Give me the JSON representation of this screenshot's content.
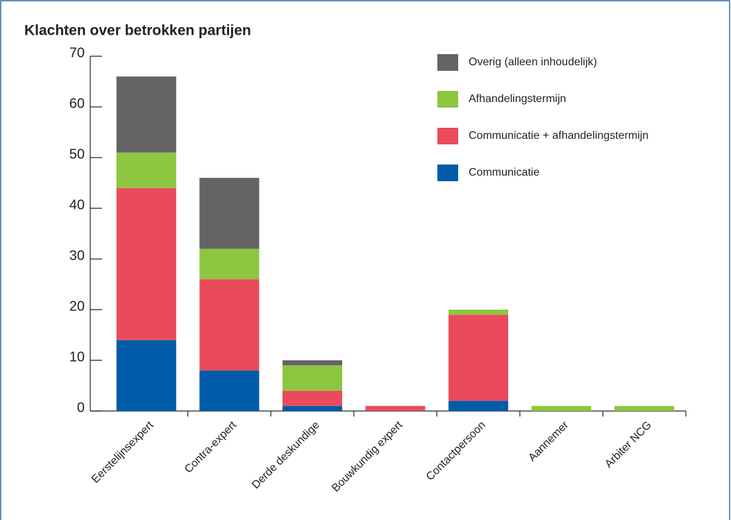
{
  "chart_data": {
    "type": "stacked_bar",
    "title": "Klachten over betrokken partijen",
    "categories": [
      "Eerstelijnsexpert",
      "Contra-expert",
      "Derde deskundige",
      "Bouwkundig expert",
      "Contactpersoon",
      "Aannemer",
      "Arbiter NCG"
    ],
    "series": [
      {
        "name": "Communicatie",
        "color": "#005ca8",
        "values": [
          14,
          8,
          1,
          0,
          2,
          0,
          0
        ]
      },
      {
        "name": "Communicatie + afhandelingstermijn",
        "color": "#e94b5c",
        "values": [
          30,
          18,
          3,
          1,
          17,
          0,
          0
        ]
      },
      {
        "name": "Afhandelingstermijn",
        "color": "#8dc63f",
        "values": [
          7,
          6,
          5,
          0,
          1,
          1,
          1
        ]
      },
      {
        "name": "Overig (alleen inhoudelijk)",
        "color": "#636466",
        "values": [
          15,
          14,
          1,
          0,
          0,
          0,
          0
        ]
      }
    ],
    "ylim": [
      0,
      70
    ],
    "yticks": [
      0,
      10,
      20,
      30,
      40,
      50,
      60,
      70
    ],
    "legend": "top-right"
  }
}
